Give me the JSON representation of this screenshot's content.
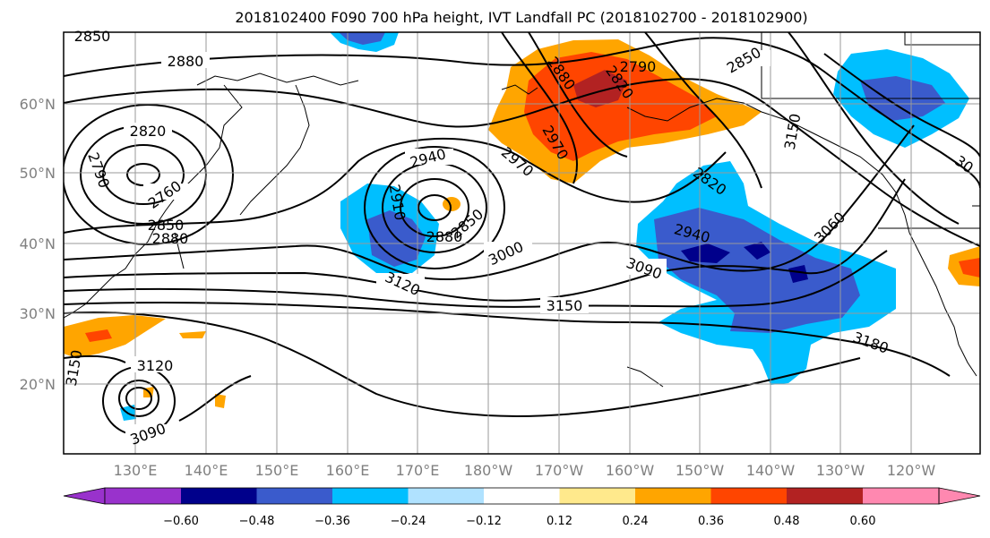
{
  "title": "2018102400 F090 700 hPa height, IVT Landfall PC (2018102700 - 2018102900)",
  "lat_labels": [
    "60°N",
    "50°N",
    "40°N",
    "30°N",
    "20°N"
  ],
  "lon_labels": [
    "130°E",
    "140°E",
    "150°E",
    "160°E",
    "170°E",
    "180°W",
    "170°W",
    "160°W",
    "150°W",
    "140°W",
    "130°W",
    "120°W"
  ],
  "colorbar": {
    "ticks": [
      "−0.60",
      "−0.48",
      "−0.36",
      "−0.24",
      "−0.12",
      "0.12",
      "0.24",
      "0.36",
      "0.48",
      "0.60"
    ],
    "colors": [
      "#9932CC",
      "#00008B",
      "#3A5BCC",
      "#00BFFF",
      "#B0E2FF",
      "#FFFFFF",
      "#FFE98C",
      "#FFA500",
      "#FF4500",
      "#B22222",
      "#FF88B0"
    ]
  },
  "contour_labels": [
    "2850",
    "2880",
    "2820",
    "2790",
    "2760",
    "2850",
    "2880",
    "2940",
    "2910",
    "2850",
    "2880",
    "3000",
    "3120",
    "3150",
    "3090",
    "2940",
    "2820",
    "2970",
    "2970",
    "2880",
    "2820",
    "2790",
    "2850",
    "3150",
    "3060",
    "3180",
    "3120",
    "3090",
    "3150",
    "30"
  ]
}
